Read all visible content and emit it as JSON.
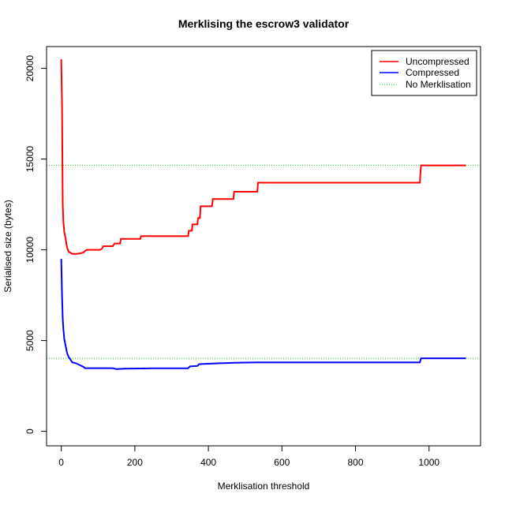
{
  "chart_data": {
    "type": "line",
    "title": "Merklising the escrow3 validator",
    "xlabel": "Merklisation threshold",
    "ylabel": "Serialised size (bytes)",
    "xlim": [
      -40,
      1140
    ],
    "ylim": [
      -800,
      21200
    ],
    "x_ticks": [
      0,
      200,
      400,
      600,
      800,
      1000
    ],
    "y_ticks": [
      0,
      5000,
      10000,
      15000,
      20000
    ],
    "x_tick_labels": [
      "0",
      "200",
      "400",
      "600",
      "800",
      "1000"
    ],
    "y_tick_labels": [
      "0",
      "5000",
      "10000",
      "15000",
      "20000"
    ],
    "legend_position": "top-right",
    "series": [
      {
        "name": "Uncompressed",
        "color": "#ff0000",
        "style": "solid",
        "points": [
          [
            0,
            20500
          ],
          [
            2,
            18000
          ],
          [
            4,
            12500
          ],
          [
            6,
            11500
          ],
          [
            8,
            11000
          ],
          [
            12,
            10600
          ],
          [
            16,
            10100
          ],
          [
            20,
            9900
          ],
          [
            30,
            9780
          ],
          [
            40,
            9780
          ],
          [
            50,
            9800
          ],
          [
            60,
            9850
          ],
          [
            65,
            9950
          ],
          [
            70,
            10000
          ],
          [
            105,
            10000
          ],
          [
            110,
            10050
          ],
          [
            115,
            10200
          ],
          [
            140,
            10200
          ],
          [
            145,
            10350
          ],
          [
            160,
            10350
          ],
          [
            162,
            10600
          ],
          [
            215,
            10600
          ],
          [
            217,
            10750
          ],
          [
            345,
            10750
          ],
          [
            347,
            11050
          ],
          [
            355,
            11050
          ],
          [
            357,
            11400
          ],
          [
            370,
            11400
          ],
          [
            372,
            11750
          ],
          [
            377,
            11750
          ],
          [
            379,
            12400
          ],
          [
            410,
            12400
          ],
          [
            412,
            12800
          ],
          [
            468,
            12800
          ],
          [
            470,
            13200
          ],
          [
            533,
            13200
          ],
          [
            535,
            13700
          ],
          [
            975,
            13700
          ],
          [
            978,
            14650
          ],
          [
            1100,
            14650
          ]
        ]
      },
      {
        "name": "Compressed",
        "color": "#0000ff",
        "style": "solid",
        "points": [
          [
            0,
            9500
          ],
          [
            2,
            7500
          ],
          [
            4,
            6200
          ],
          [
            6,
            5600
          ],
          [
            8,
            5100
          ],
          [
            12,
            4700
          ],
          [
            16,
            4300
          ],
          [
            20,
            4100
          ],
          [
            30,
            3800
          ],
          [
            40,
            3750
          ],
          [
            50,
            3650
          ],
          [
            60,
            3550
          ],
          [
            65,
            3480
          ],
          [
            140,
            3480
          ],
          [
            150,
            3430
          ],
          [
            170,
            3450
          ],
          [
            215,
            3460
          ],
          [
            250,
            3470
          ],
          [
            345,
            3470
          ],
          [
            350,
            3580
          ],
          [
            370,
            3600
          ],
          [
            375,
            3700
          ],
          [
            410,
            3730
          ],
          [
            470,
            3780
          ],
          [
            533,
            3800
          ],
          [
            975,
            3800
          ],
          [
            978,
            4020
          ],
          [
            1100,
            4020
          ]
        ]
      },
      {
        "name": "No Merklisation",
        "color": "#00cd00",
        "style": "dotted",
        "hline_uncompressed": 14650,
        "hline_compressed": 4020
      }
    ]
  }
}
